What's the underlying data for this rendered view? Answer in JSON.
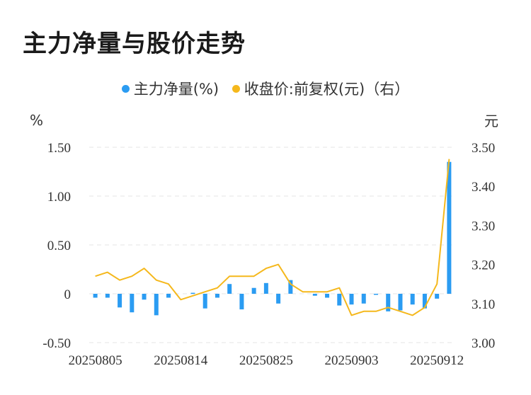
{
  "chart_data": {
    "type": "bar+line",
    "title": "主力净量与股价走势",
    "legend": [
      {
        "label": "主力净量(%)",
        "color": "#2b9cf2"
      },
      {
        "label": "收盘价:前复权(元)（右）",
        "color": "#f5b81c"
      }
    ],
    "y_left": {
      "unit": "%",
      "ticks": [
        "1.50",
        "1.00",
        "0.50",
        "0",
        "-0.50"
      ],
      "values": [
        1.5,
        1.0,
        0.5,
        0,
        -0.5
      ],
      "range": [
        -0.5,
        1.5
      ]
    },
    "y_right": {
      "unit": "元",
      "ticks": [
        "3.50",
        "3.40",
        "3.30",
        "3.20",
        "3.10",
        "3.00"
      ],
      "values": [
        3.5,
        3.4,
        3.3,
        3.2,
        3.1,
        3.0
      ],
      "range": [
        3.0,
        3.5
      ]
    },
    "x_tick_labels": [
      "20250805",
      "20250814",
      "20250825",
      "20250903",
      "20250912"
    ],
    "x_tick_indices": [
      0,
      7,
      14,
      21,
      28
    ],
    "series": [
      {
        "name": "主力净量(%)",
        "type": "bar",
        "color": "#2b9cf2",
        "values": [
          -0.04,
          -0.04,
          -0.14,
          -0.19,
          -0.06,
          -0.22,
          -0.04,
          0.0,
          0.01,
          -0.15,
          -0.04,
          0.1,
          -0.16,
          0.06,
          0.11,
          -0.1,
          0.14,
          0.0,
          -0.02,
          -0.04,
          -0.12,
          -0.11,
          -0.1,
          -0.01,
          -0.18,
          -0.17,
          -0.11,
          -0.15,
          -0.05,
          1.35
        ]
      },
      {
        "name": "收盘价:前复权(元)（右）",
        "type": "line",
        "color": "#f5b81c",
        "values": [
          3.17,
          3.18,
          3.16,
          3.17,
          3.19,
          3.16,
          3.15,
          3.11,
          3.12,
          3.13,
          3.14,
          3.17,
          3.17,
          3.17,
          3.19,
          3.2,
          3.15,
          3.13,
          3.13,
          3.13,
          3.14,
          3.07,
          3.08,
          3.08,
          3.09,
          3.08,
          3.07,
          3.09,
          3.15,
          3.47
        ]
      }
    ],
    "grid": "horizontal-dashed"
  }
}
